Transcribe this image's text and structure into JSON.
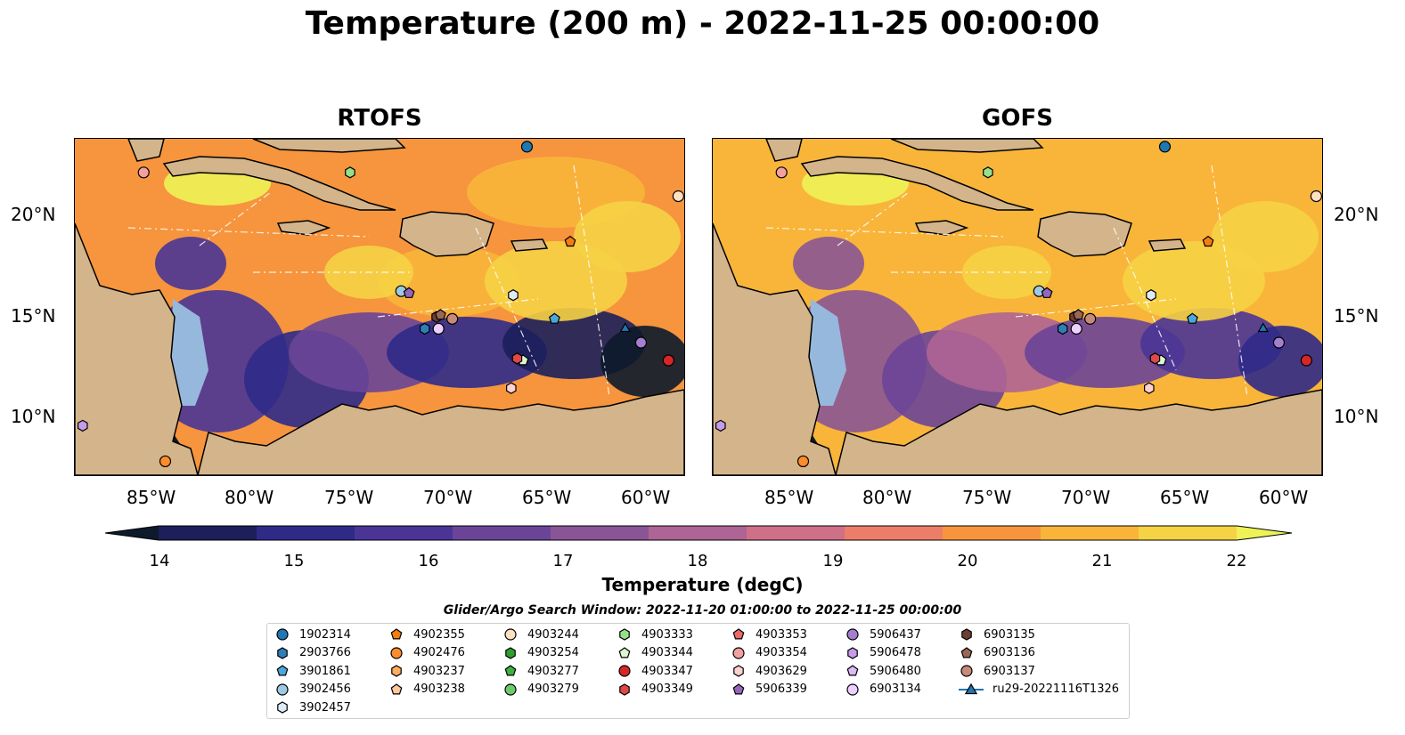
{
  "title": "Temperature (200 m) - 2022-11-25 00:00:00",
  "panels": [
    {
      "title": "RTOFS"
    },
    {
      "title": "GOFS"
    }
  ],
  "axes": {
    "lat_labels": [
      "20°N",
      "15°N",
      "10°N"
    ],
    "lon_labels": [
      "85°W",
      "80°W",
      "75°W",
      "70°W",
      "65°W",
      "60°W"
    ],
    "lat_values": [
      20,
      15,
      10
    ],
    "lon_values": [
      -85,
      -80,
      -75,
      -70,
      -65,
      -60
    ],
    "lon_range": [
      -89,
      -58
    ],
    "lat_range": [
      7,
      24
    ]
  },
  "colorbar": {
    "label": "Temperature (degC)",
    "ticks": [
      "14",
      "15",
      "16",
      "17",
      "18",
      "19",
      "20",
      "21",
      "22"
    ],
    "range": [
      14,
      22
    ],
    "extend": "both",
    "colors": [
      "#0d1a2b",
      "#1c1f5a",
      "#2f2a88",
      "#4a3596",
      "#6a4597",
      "#8a5596",
      "#ae6494",
      "#d06f88",
      "#ec7d68",
      "#f6953d",
      "#f8b53a",
      "#f6d245",
      "#eef257"
    ]
  },
  "legend": {
    "title": "Glider/Argo Search Window: 2022-11-20 01:00:00 to 2022-11-25 00:00:00",
    "columns": [
      [
        {
          "label": "1902314",
          "marker": "circle",
          "color": "#1f77b4"
        },
        {
          "label": "2903766",
          "marker": "hexagon",
          "color": "#2e7fb8"
        },
        {
          "label": "3901861",
          "marker": "pentagon",
          "color": "#4ba6dc"
        },
        {
          "label": "3902456",
          "marker": "circle",
          "color": "#9ecae1"
        },
        {
          "label": "3902457",
          "marker": "hexagon",
          "color": "#deebf7"
        }
      ],
      [
        {
          "label": "4902355",
          "marker": "pentagon",
          "color": "#f57d10"
        },
        {
          "label": "4902476",
          "marker": "circle",
          "color": "#ff8c2a"
        },
        {
          "label": "4903237",
          "marker": "hexagon",
          "color": "#ffad5f"
        },
        {
          "label": "4903238",
          "marker": "pentagon",
          "color": "#ffc89a"
        }
      ],
      [
        {
          "label": "4903244",
          "marker": "circle",
          "color": "#ffe0c2"
        },
        {
          "label": "4903254",
          "marker": "hexagon",
          "color": "#2ca02c"
        },
        {
          "label": "4903277",
          "marker": "pentagon",
          "color": "#3fb13f"
        },
        {
          "label": "4903279",
          "marker": "circle",
          "color": "#6ccc6c"
        }
      ],
      [
        {
          "label": "4903333",
          "marker": "hexagon",
          "color": "#98df8a"
        },
        {
          "label": "4903344",
          "marker": "pentagon",
          "color": "#dcf7cf"
        },
        {
          "label": "4903347",
          "marker": "circle",
          "color": "#d62728"
        },
        {
          "label": "4903349",
          "marker": "hexagon",
          "color": "#e04848"
        }
      ],
      [
        {
          "label": "4903353",
          "marker": "pentagon",
          "color": "#ec6a6a"
        },
        {
          "label": "4903354",
          "marker": "circle",
          "color": "#f2a0a0"
        },
        {
          "label": "4903629",
          "marker": "hexagon",
          "color": "#ffd0d0"
        },
        {
          "label": "5906339",
          "marker": "pentagon",
          "color": "#9467bd"
        }
      ],
      [
        {
          "label": "5906437",
          "marker": "circle",
          "color": "#a47fcf"
        },
        {
          "label": "5906478",
          "marker": "hexagon",
          "color": "#c59bea"
        },
        {
          "label": "5906480",
          "marker": "pentagon",
          "color": "#dcb9f7"
        },
        {
          "label": "6903134",
          "marker": "circle",
          "color": "#ecd0ff"
        }
      ],
      [
        {
          "label": "6903135",
          "marker": "hexagon",
          "color": "#6d3f33"
        },
        {
          "label": "6903136",
          "marker": "pentagon",
          "color": "#9a6756"
        },
        {
          "label": "6903137",
          "marker": "circle",
          "color": "#c58a78"
        },
        {
          "label": "ru29-20221116T1326",
          "marker": "triangle-line",
          "color": "#1f77b4"
        }
      ]
    ]
  },
  "floats": [
    {
      "id": "1902314",
      "lon": -66.0,
      "lat": 23.6
    },
    {
      "id": "2903766",
      "lon": -71.2,
      "lat": 14.4
    },
    {
      "id": "3901861",
      "lon": -64.6,
      "lat": 14.9
    },
    {
      "id": "3902456",
      "lon": -72.4,
      "lat": 16.3
    },
    {
      "id": "3902457",
      "lon": -66.7,
      "lat": 16.1
    },
    {
      "id": "4902355",
      "lon": -63.8,
      "lat": 18.8
    },
    {
      "id": "4902476",
      "lon": -84.4,
      "lat": 7.7
    },
    {
      "id": "4903244",
      "lon": -58.3,
      "lat": 21.1
    },
    {
      "id": "4903333",
      "lon": -75.0,
      "lat": 22.3
    },
    {
      "id": "4903344",
      "lon": -66.2,
      "lat": 12.8
    },
    {
      "id": "4903347",
      "lon": -58.8,
      "lat": 12.8
    },
    {
      "id": "4903349",
      "lon": -66.5,
      "lat": 12.9
    },
    {
      "id": "4903354",
      "lon": -85.5,
      "lat": 22.3
    },
    {
      "id": "4903629",
      "lon": -66.8,
      "lat": 11.4
    },
    {
      "id": "5906339",
      "lon": -72.0,
      "lat": 16.2
    },
    {
      "id": "5906437",
      "lon": -60.2,
      "lat": 13.7
    },
    {
      "id": "5906478",
      "lon": -88.6,
      "lat": 9.5
    },
    {
      "id": "6903134",
      "lon": -70.5,
      "lat": 14.4
    },
    {
      "id": "6903135",
      "lon": -70.6,
      "lat": 15.0
    },
    {
      "id": "6903136",
      "lon": -70.4,
      "lat": 15.1
    },
    {
      "id": "6903137",
      "lon": -69.8,
      "lat": 14.9
    },
    {
      "id": "ru29-20221116T1326",
      "lon": -61.0,
      "lat": 14.4
    }
  ]
}
